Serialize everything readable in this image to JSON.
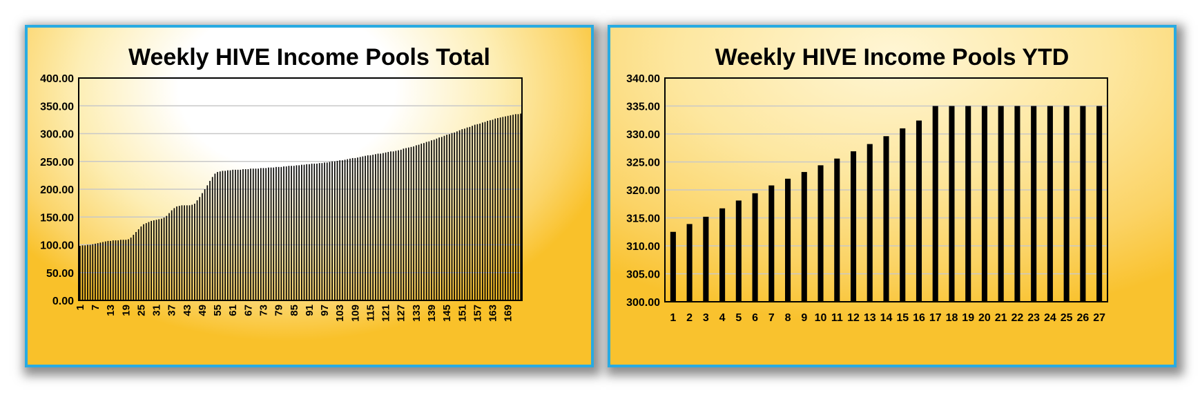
{
  "chart_data": [
    {
      "type": "bar",
      "title": "Weekly HIVE Income Pools Total",
      "xlabel": "",
      "ylabel": "",
      "ylim": [
        0,
        400
      ],
      "yticks": [
        "0.00",
        "50.00",
        "100.00",
        "150.00",
        "200.00",
        "250.00",
        "300.00",
        "350.00",
        "400.00"
      ],
      "xtick_labels": [
        "1",
        "7",
        "13",
        "19",
        "25",
        "31",
        "37",
        "43",
        "49",
        "55",
        "61",
        "67",
        "73",
        "79",
        "85",
        "91",
        "97",
        "103",
        "109",
        "115",
        "121",
        "127",
        "133",
        "139",
        "145",
        "151",
        "157",
        "163",
        "169"
      ],
      "grid": true,
      "x": [
        1,
        2,
        3,
        4,
        5,
        6,
        7,
        8,
        9,
        10,
        11,
        12,
        13,
        14,
        15,
        16,
        17,
        18,
        19,
        20,
        21,
        22,
        23,
        24,
        25,
        26,
        27,
        28,
        29,
        30,
        31,
        32,
        33,
        34,
        35,
        36,
        37,
        38,
        39,
        40,
        41,
        42,
        43,
        44,
        45,
        46,
        47,
        48,
        49,
        50,
        51,
        52,
        53,
        54,
        55,
        56,
        57,
        58,
        59,
        60,
        61,
        62,
        63,
        64,
        65,
        66,
        67,
        68,
        69,
        70,
        71,
        72,
        73,
        74,
        75,
        76,
        77,
        78,
        79,
        80,
        81,
        82,
        83,
        84,
        85,
        86,
        87,
        88,
        89,
        90,
        91,
        92,
        93,
        94,
        95,
        96,
        97,
        98,
        99,
        100,
        101,
        102,
        103,
        104,
        105,
        106,
        107,
        108,
        109,
        110,
        111,
        112,
        113,
        114,
        115,
        116,
        117,
        118,
        119,
        120,
        121,
        122,
        123,
        124,
        125,
        126,
        127,
        128,
        129,
        130,
        131,
        132,
        133,
        134,
        135,
        136,
        137,
        138,
        139,
        140,
        141,
        142,
        143,
        144,
        145,
        146,
        147,
        148,
        149,
        150,
        151,
        152,
        153,
        154,
        155,
        156,
        157,
        158,
        159,
        160,
        161,
        162,
        163,
        164,
        165,
        166,
        167,
        168,
        169,
        170,
        171,
        172,
        173,
        174
      ],
      "values": [
        98,
        99,
        99,
        100,
        100,
        101,
        102,
        103,
        104,
        105,
        106,
        107,
        107,
        108,
        108,
        108,
        109,
        109,
        109,
        110,
        113,
        118,
        123,
        128,
        133,
        137,
        139,
        141,
        143,
        144,
        145,
        146,
        147,
        149,
        152,
        157,
        162,
        166,
        169,
        170,
        171,
        171,
        171,
        171,
        172,
        174,
        180,
        186,
        193,
        200,
        207,
        215,
        222,
        228,
        231,
        232,
        233,
        233,
        234,
        234,
        235,
        235,
        235,
        235,
        236,
        236,
        236,
        237,
        237,
        237,
        237,
        238,
        238,
        238,
        239,
        239,
        239,
        240,
        240,
        240,
        241,
        241,
        242,
        242,
        242,
        243,
        243,
        244,
        244,
        245,
        245,
        246,
        246,
        246,
        247,
        247,
        248,
        248,
        249,
        250,
        250,
        251,
        252,
        252,
        253,
        254,
        255,
        256,
        256,
        257,
        258,
        259,
        260,
        261,
        261,
        262,
        263,
        264,
        264,
        265,
        266,
        267,
        268,
        268,
        269,
        270,
        271,
        273,
        274,
        275,
        276,
        277,
        279,
        280,
        282,
        283,
        285,
        286,
        288,
        289,
        291,
        293,
        294,
        296,
        298,
        299,
        301,
        302,
        304,
        306,
        308,
        309,
        311,
        312,
        314,
        316,
        317,
        318,
        320,
        321,
        323,
        324,
        325,
        327,
        328,
        329,
        330,
        331,
        332,
        333,
        334,
        335,
        335,
        336
      ]
    },
    {
      "type": "bar",
      "title": "Weekly HIVE Income Pools YTD",
      "xlabel": "",
      "ylabel": "",
      "ylim": [
        300,
        340
      ],
      "yticks": [
        "300.00",
        "305.00",
        "310.00",
        "315.00",
        "320.00",
        "325.00",
        "330.00",
        "335.00",
        "340.00"
      ],
      "grid": true,
      "categories": [
        "1",
        "2",
        "3",
        "4",
        "5",
        "6",
        "7",
        "8",
        "9",
        "10",
        "11",
        "12",
        "13",
        "14",
        "15",
        "16",
        "17",
        "18",
        "19",
        "20",
        "21",
        "22",
        "23",
        "24",
        "25",
        "26",
        "27"
      ],
      "values": [
        312.5,
        313.9,
        315.2,
        316.7,
        318.1,
        319.4,
        320.8,
        322.0,
        323.2,
        324.4,
        325.6,
        326.9,
        328.2,
        329.6,
        331.0,
        332.4,
        335.0,
        335.0,
        335.0,
        335.0,
        335.0,
        335.0,
        335.0,
        335.0,
        335.0,
        335.0,
        335.0
      ]
    }
  ]
}
